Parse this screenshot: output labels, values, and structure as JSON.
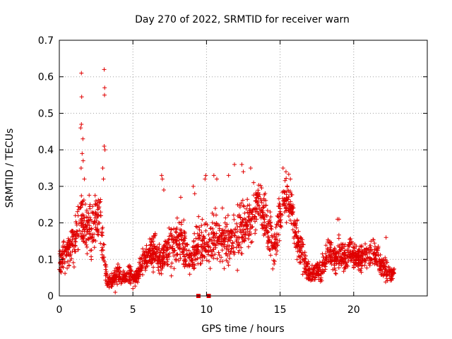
{
  "chart_data": {
    "type": "scatter",
    "title": "Day 270 of 2022, SRMTID for receiver warn",
    "xlabel": "GPS time / hours",
    "ylabel": "SRMTID / TECUs",
    "xlim": [
      0,
      25
    ],
    "ylim": [
      0,
      0.7
    ],
    "xticks": [
      0,
      5,
      10,
      15,
      20
    ],
    "xtick_labels": [
      "0",
      "5",
      "10",
      "15",
      "20"
    ],
    "yticks": [
      0,
      0.1,
      0.2,
      0.3,
      0.4,
      0.5,
      0.6,
      0.7
    ],
    "ytick_labels": [
      "0",
      "0.1",
      "0.2",
      "0.3",
      "0.4",
      "0.5",
      "0.6",
      "0.7"
    ],
    "grid": true,
    "marker": "+",
    "color": "#e00000",
    "envelope_step_hours": 0.25,
    "envelope_base": [
      0.09,
      0.11,
      0.12,
      0.13,
      0.15,
      0.18,
      0.2,
      0.19,
      0.18,
      0.17,
      0.2,
      0.22,
      0.12,
      0.04,
      0.04,
      0.05,
      0.06,
      0.05,
      0.05,
      0.06,
      0.05,
      0.05,
      0.08,
      0.1,
      0.11,
      0.12,
      0.12,
      0.11,
      0.1,
      0.12,
      0.14,
      0.13,
      0.14,
      0.16,
      0.13,
      0.11,
      0.1,
      0.13,
      0.15,
      0.14,
      0.13,
      0.14,
      0.15,
      0.16,
      0.17,
      0.15,
      0.14,
      0.15,
      0.17,
      0.18,
      0.19,
      0.2,
      0.22,
      0.24,
      0.26,
      0.24,
      0.21,
      0.18,
      0.13,
      0.16,
      0.22,
      0.25,
      0.27,
      0.24,
      0.18,
      0.14,
      0.12,
      0.08,
      0.06,
      0.06,
      0.07,
      0.07,
      0.09,
      0.12,
      0.11,
      0.1,
      0.12,
      0.11,
      0.1,
      0.12,
      0.11,
      0.1,
      0.1,
      0.11,
      0.11,
      0.12,
      0.11,
      0.09,
      0.08,
      0.07,
      0.06,
      0.06
    ],
    "envelope_spread": [
      0.04,
      0.05,
      0.05,
      0.06,
      0.07,
      0.08,
      0.09,
      0.08,
      0.08,
      0.08,
      0.09,
      0.09,
      0.06,
      0.02,
      0.02,
      0.02,
      0.03,
      0.02,
      0.02,
      0.03,
      0.02,
      0.02,
      0.03,
      0.04,
      0.05,
      0.05,
      0.06,
      0.05,
      0.05,
      0.06,
      0.07,
      0.07,
      0.07,
      0.07,
      0.06,
      0.05,
      0.05,
      0.06,
      0.07,
      0.07,
      0.07,
      0.07,
      0.08,
      0.08,
      0.08,
      0.07,
      0.07,
      0.07,
      0.08,
      0.08,
      0.08,
      0.08,
      0.08,
      0.08,
      0.07,
      0.07,
      0.07,
      0.06,
      0.05,
      0.06,
      0.07,
      0.07,
      0.07,
      0.07,
      0.06,
      0.05,
      0.05,
      0.04,
      0.03,
      0.03,
      0.03,
      0.03,
      0.04,
      0.05,
      0.04,
      0.04,
      0.05,
      0.04,
      0.04,
      0.05,
      0.04,
      0.04,
      0.04,
      0.04,
      0.04,
      0.04,
      0.04,
      0.04,
      0.03,
      0.03,
      0.02,
      0.02
    ],
    "outliers": [
      {
        "x": 1.5,
        "y": 0.61
      },
      {
        "x": 1.52,
        "y": 0.545
      },
      {
        "x": 1.45,
        "y": 0.46
      },
      {
        "x": 1.5,
        "y": 0.47
      },
      {
        "x": 1.6,
        "y": 0.43
      },
      {
        "x": 1.55,
        "y": 0.39
      },
      {
        "x": 1.62,
        "y": 0.37
      },
      {
        "x": 1.48,
        "y": 0.35
      },
      {
        "x": 1.7,
        "y": 0.32
      },
      {
        "x": 3.05,
        "y": 0.62
      },
      {
        "x": 3.08,
        "y": 0.57
      },
      {
        "x": 3.07,
        "y": 0.55
      },
      {
        "x": 3.05,
        "y": 0.41
      },
      {
        "x": 3.1,
        "y": 0.4
      },
      {
        "x": 2.95,
        "y": 0.35
      },
      {
        "x": 3.0,
        "y": 0.32
      },
      {
        "x": 6.95,
        "y": 0.33
      },
      {
        "x": 7.0,
        "y": 0.32
      },
      {
        "x": 7.1,
        "y": 0.29
      },
      {
        "x": 8.25,
        "y": 0.27
      },
      {
        "x": 9.1,
        "y": 0.3
      },
      {
        "x": 9.2,
        "y": 0.28
      },
      {
        "x": 9.9,
        "y": 0.32
      },
      {
        "x": 9.95,
        "y": 0.33
      },
      {
        "x": 10.5,
        "y": 0.33
      },
      {
        "x": 10.7,
        "y": 0.32
      },
      {
        "x": 11.5,
        "y": 0.33
      },
      {
        "x": 11.9,
        "y": 0.36
      },
      {
        "x": 12.4,
        "y": 0.36
      },
      {
        "x": 12.5,
        "y": 0.34
      },
      {
        "x": 13.0,
        "y": 0.35
      },
      {
        "x": 13.2,
        "y": 0.31
      },
      {
        "x": 15.2,
        "y": 0.35
      },
      {
        "x": 15.4,
        "y": 0.34
      },
      {
        "x": 15.7,
        "y": 0.32
      },
      {
        "x": 18.9,
        "y": 0.21
      },
      {
        "x": 19.0,
        "y": 0.21
      },
      {
        "x": 22.2,
        "y": 0.16
      },
      {
        "x": 3.8,
        "y": 0.01
      },
      {
        "x": 5.0,
        "y": 0.02
      },
      {
        "x": 11.2,
        "y": 0.075
      },
      {
        "x": 12.1,
        "y": 0.07
      }
    ],
    "zero_markers": [
      {
        "x": 9.45,
        "y": 0.0
      },
      {
        "x": 10.15,
        "y": 0.0
      }
    ]
  }
}
